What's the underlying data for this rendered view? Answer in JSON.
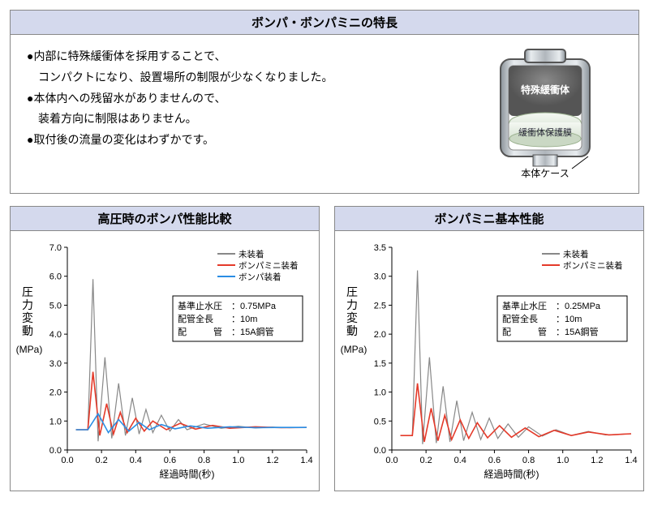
{
  "topPanel": {
    "title": "ボンパ・ボンパミニの特長",
    "features": [
      "●内部に特殊緩衝体を採用することで、",
      "　コンパクトになり、設置場所の制限が少なくなりました。",
      "●本体内への残留水がありませんので、",
      "　装着方向に制限はありません。",
      "●取付後の流量の変化はわずかです。"
    ],
    "diagram": {
      "label_buffer": "特殊緩衝体",
      "label_membrane": "緩衝体保護膜",
      "label_case": "本体ケース",
      "colors": {
        "case_outer": "#b8bec4",
        "case_inner": "#e8ebee",
        "buffer": "#6b6b6b",
        "membrane": "#e8f0e8",
        "text": "#000000"
      }
    }
  },
  "chartLeft": {
    "title": "高圧時のボンパ性能比較",
    "type": "line",
    "ylabel": "圧力変動",
    "yunit": "(MPa)",
    "xlabel": "経過時間(秒)",
    "xlim": [
      0,
      1.4
    ],
    "xtick_step": 0.2,
    "ylim": [
      0,
      7.0
    ],
    "ytick_step": 1.0,
    "legend": [
      {
        "label": "未装着",
        "color": "#888888"
      },
      {
        "label": "ボンパミニ装着",
        "color": "#e43a2a"
      },
      {
        "label": "ボンパ装着",
        "color": "#2a8de4"
      }
    ],
    "infobox": [
      {
        "k": "基準止水圧",
        "v": "：0.75MPa"
      },
      {
        "k": "配管全長",
        "v": "：10m"
      },
      {
        "k": "配　　　管",
        "v": "：15A鋼管"
      }
    ],
    "series": {
      "gray": [
        [
          0.05,
          0.7
        ],
        [
          0.12,
          0.7
        ],
        [
          0.15,
          5.9
        ],
        [
          0.18,
          0.3
        ],
        [
          0.22,
          3.2
        ],
        [
          0.26,
          0.4
        ],
        [
          0.3,
          2.3
        ],
        [
          0.34,
          0.5
        ],
        [
          0.38,
          1.8
        ],
        [
          0.42,
          0.55
        ],
        [
          0.46,
          1.4
        ],
        [
          0.5,
          0.6
        ],
        [
          0.55,
          1.2
        ],
        [
          0.6,
          0.65
        ],
        [
          0.65,
          1.05
        ],
        [
          0.7,
          0.7
        ],
        [
          0.8,
          0.9
        ],
        [
          0.9,
          0.75
        ],
        [
          1.0,
          0.82
        ],
        [
          1.1,
          0.76
        ],
        [
          1.2,
          0.79
        ],
        [
          1.3,
          0.77
        ],
        [
          1.4,
          0.78
        ]
      ],
      "red": [
        [
          0.05,
          0.7
        ],
        [
          0.12,
          0.7
        ],
        [
          0.15,
          2.7
        ],
        [
          0.19,
          0.5
        ],
        [
          0.23,
          1.6
        ],
        [
          0.27,
          0.55
        ],
        [
          0.31,
          1.3
        ],
        [
          0.35,
          0.6
        ],
        [
          0.4,
          1.1
        ],
        [
          0.45,
          0.65
        ],
        [
          0.5,
          1.0
        ],
        [
          0.58,
          0.7
        ],
        [
          0.66,
          0.92
        ],
        [
          0.75,
          0.72
        ],
        [
          0.85,
          0.85
        ],
        [
          0.95,
          0.75
        ],
        [
          1.1,
          0.8
        ],
        [
          1.25,
          0.77
        ],
        [
          1.4,
          0.78
        ]
      ],
      "blue": [
        [
          0.05,
          0.7
        ],
        [
          0.12,
          0.7
        ],
        [
          0.18,
          1.25
        ],
        [
          0.24,
          0.6
        ],
        [
          0.3,
          1.05
        ],
        [
          0.36,
          0.65
        ],
        [
          0.42,
          0.95
        ],
        [
          0.48,
          0.7
        ],
        [
          0.55,
          0.88
        ],
        [
          0.63,
          0.73
        ],
        [
          0.72,
          0.83
        ],
        [
          0.82,
          0.75
        ],
        [
          0.95,
          0.8
        ],
        [
          1.1,
          0.77
        ],
        [
          1.25,
          0.78
        ],
        [
          1.4,
          0.78
        ]
      ]
    },
    "colors": {
      "axis": "#000000",
      "grid": "#cccccc",
      "bg": "#ffffff",
      "label_fontsize": 11
    }
  },
  "chartRight": {
    "title": "ボンパミニ基本性能",
    "type": "line",
    "ylabel": "圧力変動",
    "yunit": "(MPa)",
    "xlabel": "経過時間(秒)",
    "xlim": [
      0,
      1.4
    ],
    "xtick_step": 0.2,
    "ylim": [
      0,
      3.5
    ],
    "ytick_step": 0.5,
    "legend": [
      {
        "label": "未装着",
        "color": "#888888"
      },
      {
        "label": "ボンパミニ装着",
        "color": "#e43a2a"
      }
    ],
    "infobox": [
      {
        "k": "基準止水圧",
        "v": "：0.25MPa"
      },
      {
        "k": "配管全長",
        "v": "：10m"
      },
      {
        "k": "配　　　管",
        "v": "：15A鋼管"
      }
    ],
    "series": {
      "gray": [
        [
          0.05,
          0.25
        ],
        [
          0.12,
          0.25
        ],
        [
          0.15,
          3.1
        ],
        [
          0.18,
          0.1
        ],
        [
          0.22,
          1.6
        ],
        [
          0.26,
          0.12
        ],
        [
          0.3,
          1.1
        ],
        [
          0.34,
          0.14
        ],
        [
          0.38,
          0.85
        ],
        [
          0.42,
          0.16
        ],
        [
          0.47,
          0.65
        ],
        [
          0.52,
          0.18
        ],
        [
          0.57,
          0.55
        ],
        [
          0.62,
          0.2
        ],
        [
          0.68,
          0.45
        ],
        [
          0.74,
          0.22
        ],
        [
          0.8,
          0.4
        ],
        [
          0.88,
          0.24
        ],
        [
          0.96,
          0.35
        ],
        [
          1.05,
          0.25
        ],
        [
          1.15,
          0.32
        ],
        [
          1.25,
          0.26
        ],
        [
          1.4,
          0.28
        ]
      ],
      "red": [
        [
          0.05,
          0.25
        ],
        [
          0.12,
          0.25
        ],
        [
          0.15,
          1.15
        ],
        [
          0.19,
          0.14
        ],
        [
          0.23,
          0.72
        ],
        [
          0.27,
          0.16
        ],
        [
          0.31,
          0.6
        ],
        [
          0.35,
          0.18
        ],
        [
          0.4,
          0.52
        ],
        [
          0.45,
          0.2
        ],
        [
          0.5,
          0.47
        ],
        [
          0.56,
          0.21
        ],
        [
          0.63,
          0.42
        ],
        [
          0.7,
          0.22
        ],
        [
          0.78,
          0.38
        ],
        [
          0.86,
          0.23
        ],
        [
          0.95,
          0.34
        ],
        [
          1.05,
          0.25
        ],
        [
          1.15,
          0.31
        ],
        [
          1.27,
          0.26
        ],
        [
          1.4,
          0.28
        ]
      ]
    },
    "colors": {
      "axis": "#000000",
      "grid": "#cccccc",
      "bg": "#ffffff",
      "label_fontsize": 11
    }
  }
}
